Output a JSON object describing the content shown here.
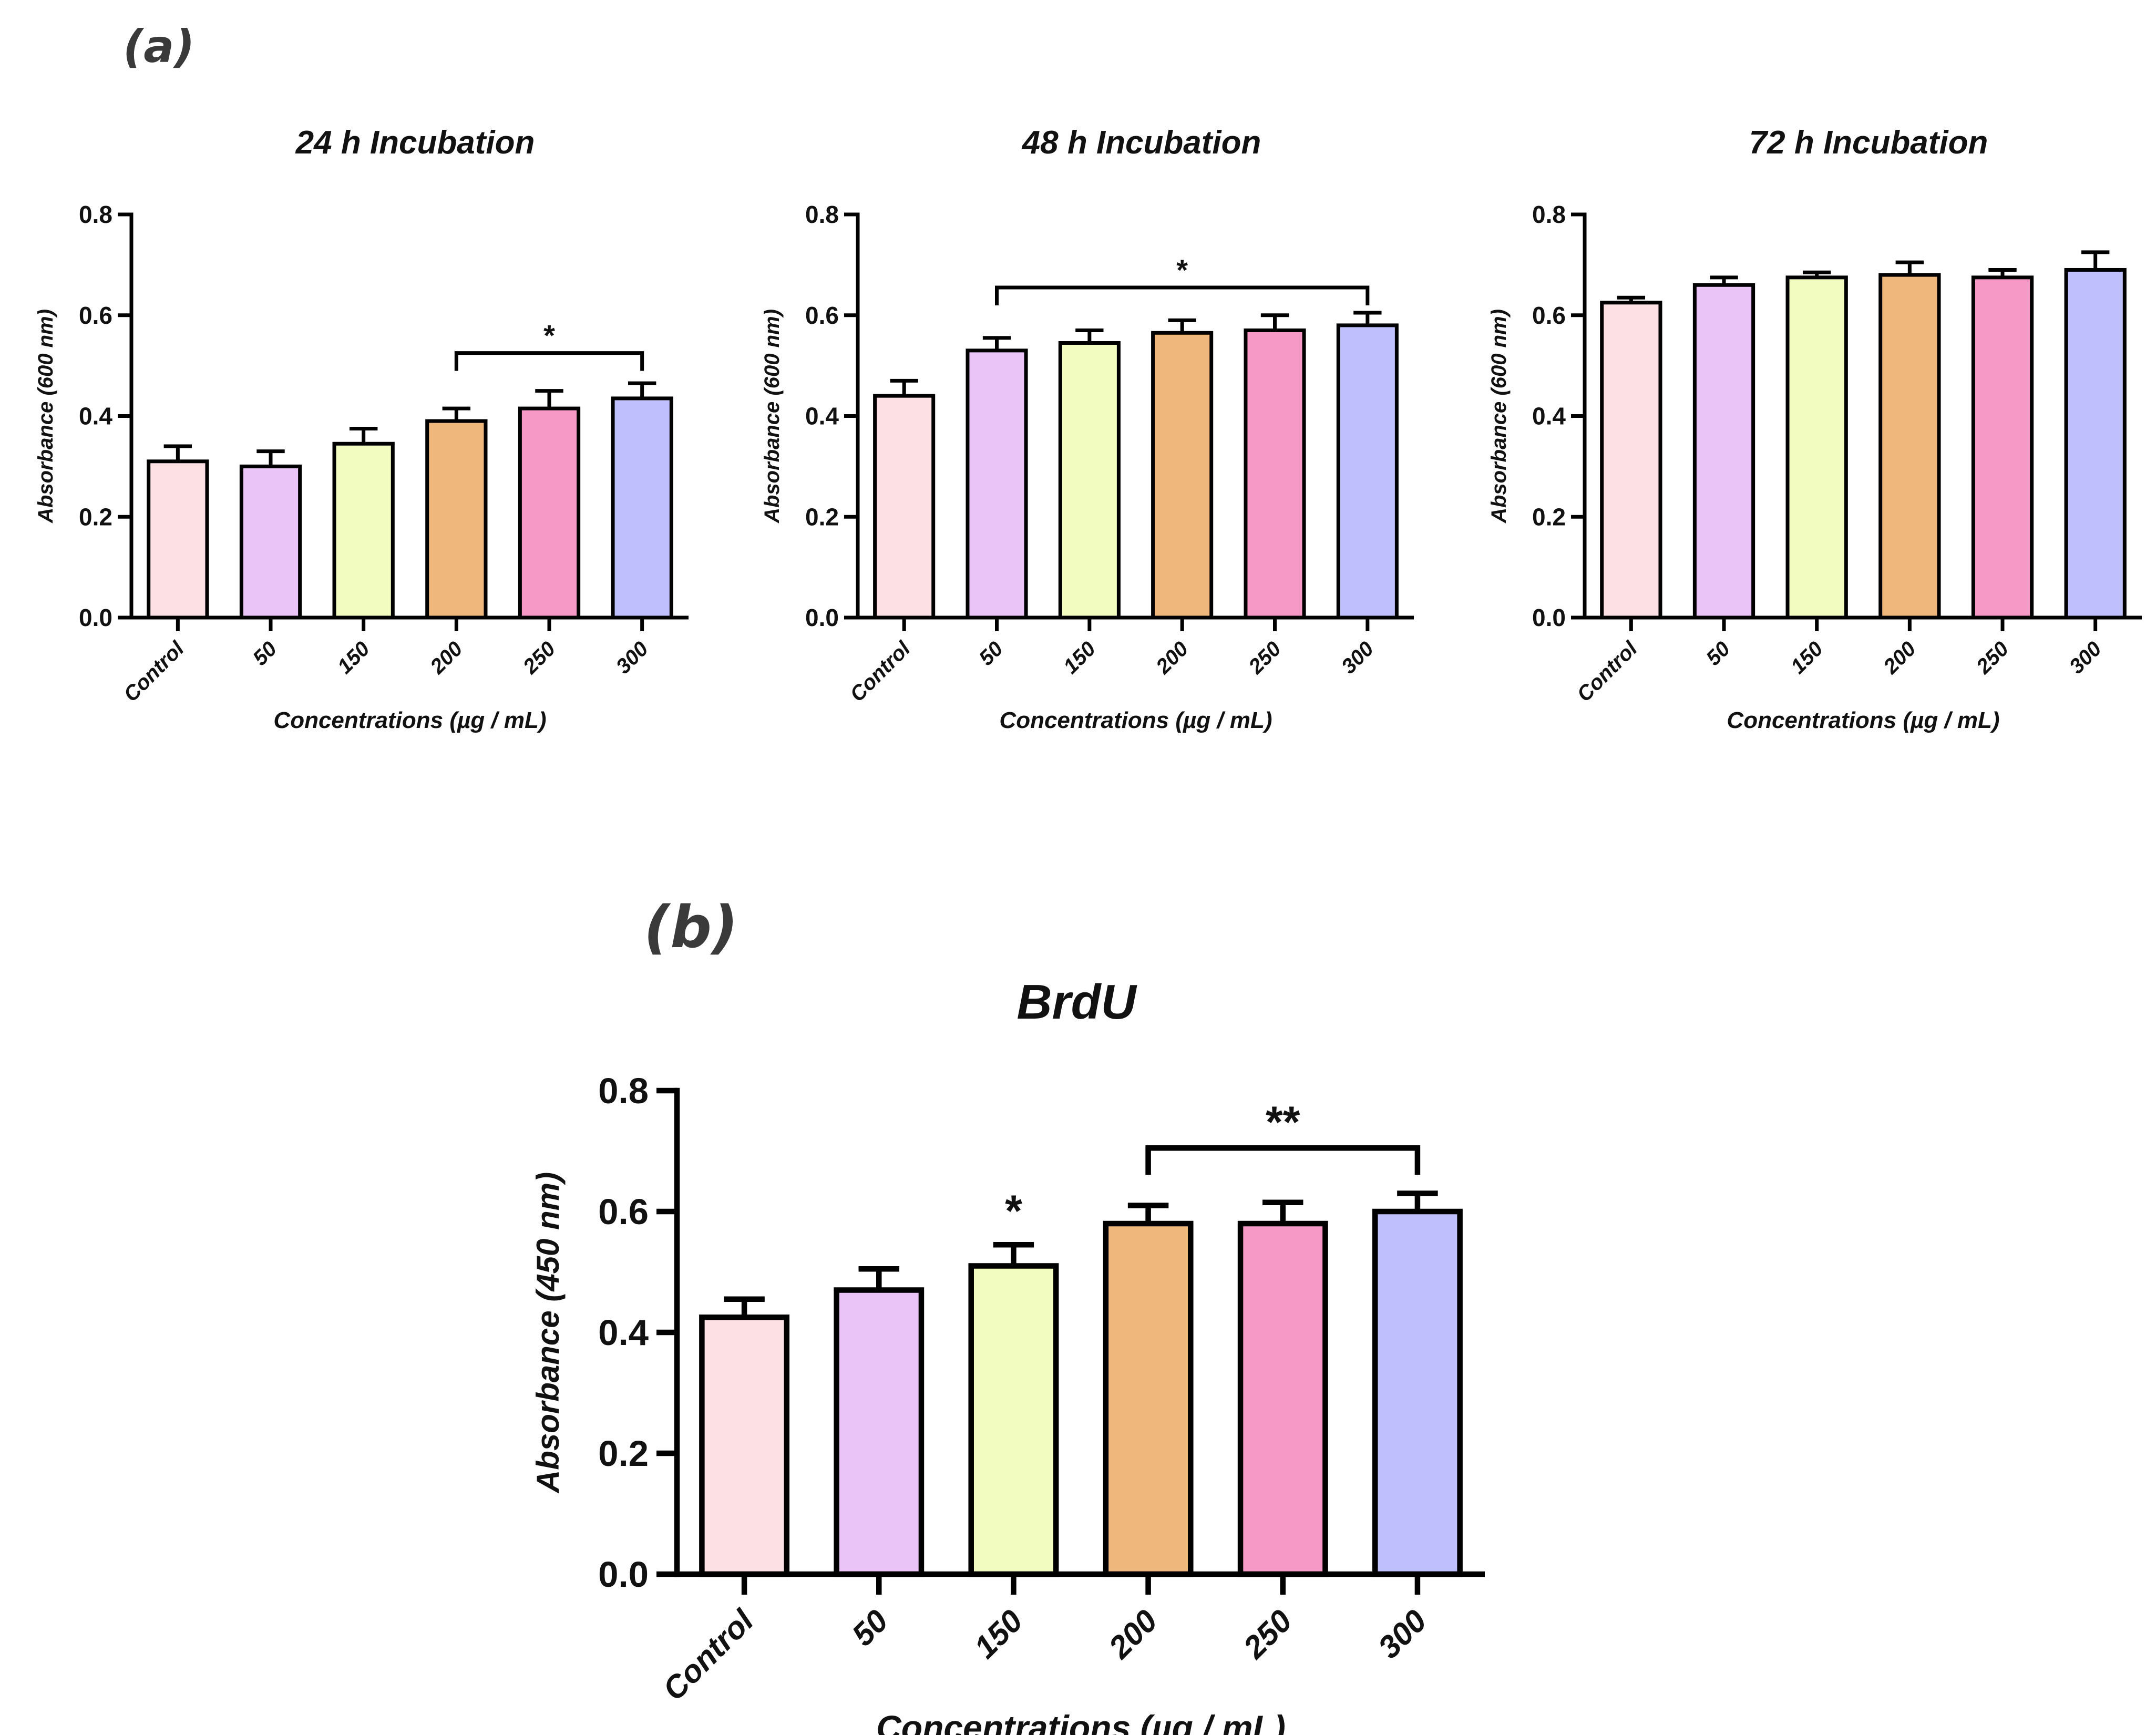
{
  "panel_labels": {
    "a": "(a)",
    "b": "(b)"
  },
  "chart_data": [
    {
      "type": "bar",
      "panel": "a",
      "title": "24 h Incubation",
      "xlabel": "Concentrations (µg / mL)",
      "ylabel": "Absorbance (600 nm)",
      "ylim": [
        0,
        0.8
      ],
      "yticks": [
        "0.0",
        "0.2",
        "0.4",
        "0.6",
        "0.8"
      ],
      "categories": [
        "Control",
        "50",
        "150",
        "200",
        "250",
        "300"
      ],
      "values": [
        0.31,
        0.3,
        0.345,
        0.39,
        0.415,
        0.435
      ],
      "errors": [
        0.03,
        0.03,
        0.03,
        0.025,
        0.035,
        0.03
      ],
      "colors": [
        "#fde0e3",
        "#eac4f7",
        "#f3fcc0",
        "#f0b77c",
        "#f699c7",
        "#bfbffd"
      ],
      "significance": [
        {
          "label": "*",
          "from": 3,
          "to": 5,
          "y": 0.525
        }
      ],
      "single_sig": []
    },
    {
      "type": "bar",
      "panel": "a",
      "title": "48 h Incubation",
      "xlabel": "Concentrations (µg / mL)",
      "ylabel": "Absorbance (600 nm)",
      "ylim": [
        0,
        0.8
      ],
      "yticks": [
        "0.0",
        "0.2",
        "0.4",
        "0.6",
        "0.8"
      ],
      "categories": [
        "Control",
        "50",
        "150",
        "200",
        "250",
        "300"
      ],
      "values": [
        0.44,
        0.53,
        0.545,
        0.565,
        0.57,
        0.58
      ],
      "errors": [
        0.03,
        0.025,
        0.025,
        0.025,
        0.03,
        0.025
      ],
      "colors": [
        "#fde0e3",
        "#eac4f7",
        "#f3fcc0",
        "#f0b77c",
        "#f699c7",
        "#bfbffd"
      ],
      "significance": [
        {
          "label": "*",
          "from": 1,
          "to": 5,
          "y": 0.655
        }
      ],
      "single_sig": []
    },
    {
      "type": "bar",
      "panel": "a",
      "title": "72 h Incubation",
      "xlabel": "Concentrations (µg / mL)",
      "ylabel": "Absorbance (600 nm)",
      "ylim": [
        0,
        0.8
      ],
      "yticks": [
        "0.0",
        "0.2",
        "0.4",
        "0.6",
        "0.8"
      ],
      "categories": [
        "Control",
        "50",
        "150",
        "200",
        "250",
        "300"
      ],
      "values": [
        0.625,
        0.66,
        0.675,
        0.68,
        0.675,
        0.69
      ],
      "errors": [
        0.01,
        0.015,
        0.01,
        0.025,
        0.015,
        0.035
      ],
      "colors": [
        "#fde0e3",
        "#eac4f7",
        "#f3fcc0",
        "#f0b77c",
        "#f699c7",
        "#bfbffd"
      ],
      "significance": [],
      "single_sig": []
    },
    {
      "type": "bar",
      "panel": "b",
      "title": "BrdU",
      "xlabel": "Concentrations (µg / mL)",
      "ylabel": "Absorbance (450 nm)",
      "ylim": [
        0,
        0.8
      ],
      "yticks": [
        "0.0",
        "0.2",
        "0.4",
        "0.6",
        "0.8"
      ],
      "categories": [
        "Control",
        "50",
        "150",
        "200",
        "250",
        "300"
      ],
      "values": [
        0.425,
        0.47,
        0.51,
        0.58,
        0.58,
        0.6
      ],
      "errors": [
        0.03,
        0.035,
        0.035,
        0.03,
        0.035,
        0.03
      ],
      "colors": [
        "#fde0e3",
        "#eac4f7",
        "#f3fcc0",
        "#f0b77c",
        "#f699c7",
        "#bfbffd"
      ],
      "significance": [
        {
          "label": "**",
          "from": 3,
          "to": 5,
          "y": 0.705
        }
      ],
      "single_sig": [
        {
          "label": "*",
          "index": 2
        }
      ]
    }
  ]
}
